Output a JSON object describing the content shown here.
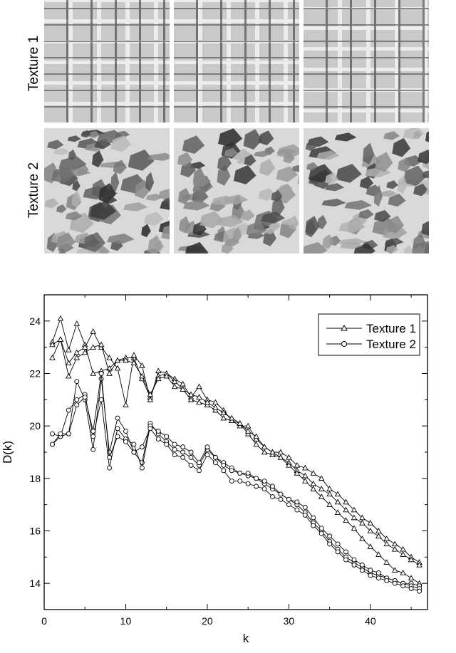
{
  "textures": {
    "row1_label": "Texture 1",
    "row2_label": "Texture 2"
  },
  "chart_data": {
    "type": "line",
    "title": "",
    "xlabel": "k",
    "ylabel": "D(k)",
    "xlim": [
      0,
      47
    ],
    "ylim": [
      13,
      25
    ],
    "xticks": [
      0,
      10,
      20,
      30,
      40
    ],
    "yticks": [
      14,
      16,
      18,
      20,
      22,
      24
    ],
    "grid": false,
    "legend": "top-right",
    "x": [
      1,
      2,
      3,
      4,
      5,
      6,
      7,
      8,
      9,
      10,
      11,
      12,
      13,
      14,
      15,
      16,
      17,
      18,
      19,
      20,
      21,
      22,
      23,
      24,
      25,
      26,
      27,
      28,
      29,
      30,
      31,
      32,
      33,
      34,
      35,
      36,
      37,
      38,
      39,
      40,
      41,
      42,
      43,
      44,
      45,
      46
    ],
    "series": [
      {
        "name": "Texture 1",
        "marker": "triangle",
        "values": [
          23.2,
          24.1,
          22.9,
          23.9,
          23.1,
          22.0,
          22.1,
          22.2,
          22.5,
          22.6,
          22.6,
          21.8,
          21.1,
          21.9,
          22.0,
          21.8,
          21.6,
          21.1,
          21.5,
          21.0,
          20.9,
          20.6,
          20.2,
          20.0,
          20.0,
          19.5,
          19.2,
          19.0,
          19.0,
          18.8,
          18.5,
          18.4,
          18.2,
          18.0,
          17.6,
          17.4,
          17.1,
          16.8,
          16.5,
          16.3,
          16.0,
          15.7,
          15.5,
          15.3,
          15.0,
          14.8
        ]
      },
      {
        "name": "",
        "marker": "triangle",
        "values": [
          22.6,
          23.3,
          22.4,
          22.8,
          23.0,
          23.6,
          23.0,
          22.6,
          22.2,
          20.8,
          22.7,
          22.3,
          21.0,
          22.1,
          22.0,
          21.7,
          21.4,
          21.0,
          20.9,
          20.8,
          20.6,
          20.3,
          20.2,
          20.1,
          19.7,
          19.3,
          19.0,
          18.9,
          18.8,
          18.6,
          18.3,
          18.1,
          17.8,
          17.6,
          17.4,
          17.1,
          16.8,
          16.5,
          16.3,
          16.0,
          15.8,
          15.5,
          15.3,
          15.1,
          14.9,
          14.7
        ]
      },
      {
        "name": "",
        "marker": "triangle",
        "values": [
          23.1,
          23.3,
          21.9,
          22.6,
          22.8,
          23.0,
          23.1,
          22.0,
          22.5,
          22.5,
          22.4,
          21.9,
          21.2,
          21.8,
          21.9,
          21.5,
          21.4,
          21.2,
          21.1,
          20.9,
          20.7,
          20.5,
          20.3,
          20.1,
          19.8,
          19.6,
          19.2,
          19.0,
          18.8,
          18.5,
          18.2,
          17.9,
          17.6,
          17.3,
          17.0,
          16.7,
          16.4,
          16.1,
          15.7,
          15.4,
          15.1,
          14.8,
          14.5,
          14.4,
          14.2,
          14.0
        ]
      },
      {
        "name": "Texture 2",
        "marker": "circle",
        "values": [
          19.7,
          19.6,
          19.7,
          21.7,
          21.0,
          19.1,
          21.8,
          19.0,
          20.3,
          19.8,
          19.0,
          18.6,
          20.1,
          19.7,
          19.4,
          19.1,
          19.0,
          18.8,
          18.5,
          19.1,
          18.8,
          18.6,
          18.4,
          18.2,
          18.1,
          18.0,
          17.8,
          17.6,
          17.4,
          17.2,
          17.0,
          16.7,
          16.3,
          16.0,
          15.6,
          15.3,
          15.0,
          14.8,
          14.6,
          14.4,
          14.3,
          14.2,
          14.1,
          14.0,
          14.0,
          13.9
        ]
      },
      {
        "name": "",
        "marker": "circle",
        "values": [
          19.3,
          19.6,
          20.6,
          21.0,
          21.2,
          19.6,
          21.0,
          18.4,
          19.9,
          19.5,
          19.3,
          18.4,
          20.0,
          19.8,
          19.6,
          19.3,
          19.2,
          19.0,
          18.6,
          19.2,
          18.8,
          18.5,
          18.3,
          18.2,
          18.2,
          18.0,
          17.9,
          17.7,
          17.4,
          17.2,
          17.1,
          16.9,
          16.5,
          16.1,
          15.8,
          15.5,
          15.2,
          14.9,
          14.7,
          14.5,
          14.4,
          14.2,
          14.1,
          14.0,
          13.9,
          13.8
        ]
      },
      {
        "name": "",
        "marker": "circle",
        "values": [
          19.3,
          19.7,
          19.7,
          20.8,
          21.1,
          19.8,
          22.0,
          18.8,
          19.6,
          19.4,
          19.0,
          19.2,
          19.9,
          19.5,
          19.3,
          18.9,
          18.8,
          18.5,
          18.3,
          18.9,
          18.6,
          18.3,
          17.9,
          17.9,
          17.8,
          17.7,
          17.6,
          17.3,
          17.2,
          17.0,
          16.8,
          16.6,
          16.2,
          15.9,
          15.5,
          15.2,
          14.9,
          14.7,
          14.5,
          14.3,
          14.2,
          14.1,
          14.0,
          13.9,
          13.8,
          13.7
        ]
      }
    ]
  }
}
